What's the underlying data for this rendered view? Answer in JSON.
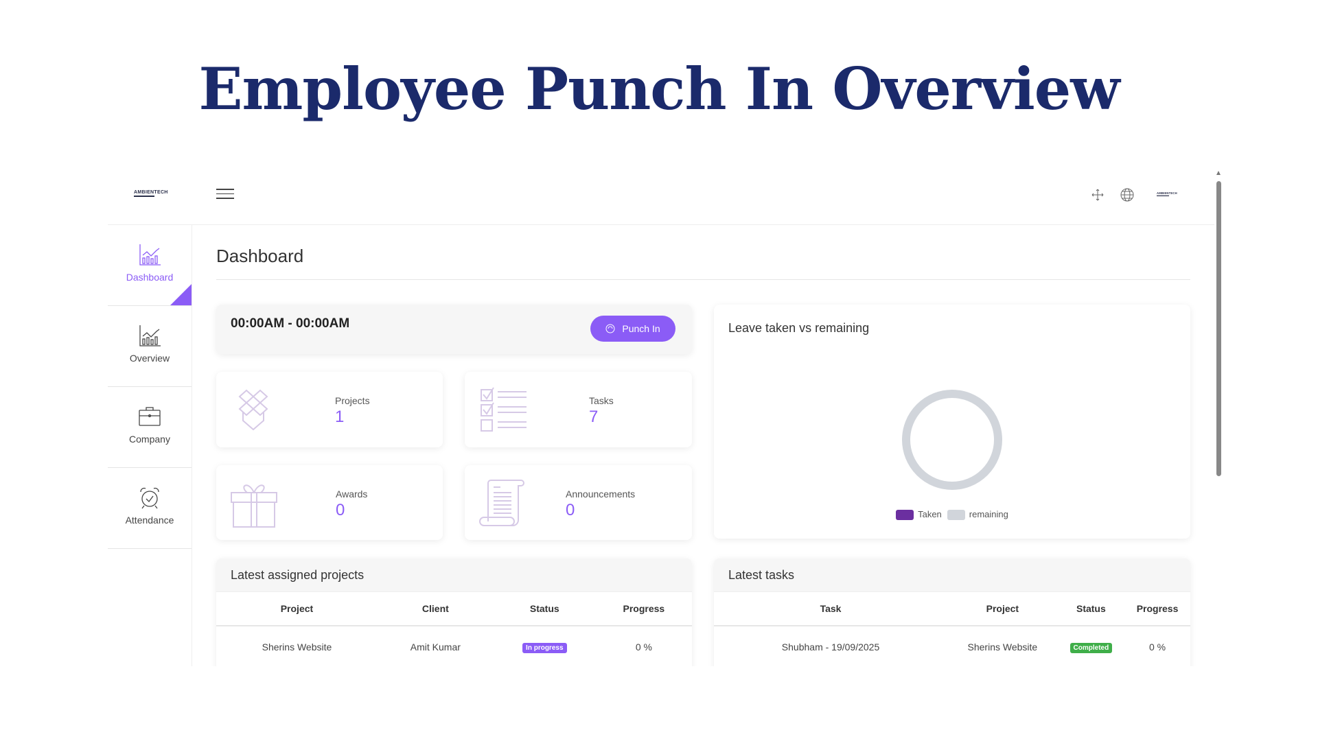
{
  "page_title": "Employee Punch In Overview",
  "header": {
    "logo_text": "AMBIENTECH",
    "icons": [
      "hamburger-icon",
      "fullscreen-move-icon",
      "globe-icon",
      "company-logo"
    ]
  },
  "sidebar": {
    "items": [
      {
        "label": "Dashboard",
        "icon": "bar-chart-icon",
        "active": true
      },
      {
        "label": "Overview",
        "icon": "bar-chart-icon",
        "active": false
      },
      {
        "label": "Company",
        "icon": "briefcase-icon",
        "active": false
      },
      {
        "label": "Attendance",
        "icon": "alarm-clock-icon",
        "active": false
      }
    ]
  },
  "main": {
    "title": "Dashboard",
    "punch": {
      "time_range": "00:00AM - 00:00AM",
      "button_label": "Punch In"
    },
    "stats": [
      {
        "label": "Projects",
        "value": "1",
        "icon": "box-icon"
      },
      {
        "label": "Tasks",
        "value": "7",
        "icon": "checklist-icon"
      },
      {
        "label": "Awards",
        "value": "0",
        "icon": "gift-icon"
      },
      {
        "label": "Announcements",
        "value": "0",
        "icon": "scroll-icon"
      }
    ],
    "leave_chart": {
      "title": "Leave taken vs remaining"
    },
    "projects_table": {
      "title": "Latest assigned projects",
      "columns": [
        "Project",
        "Client",
        "Status",
        "Progress"
      ],
      "rows": [
        {
          "project": "Sherins Website",
          "client": "Amit Kumar",
          "status": "In progress",
          "progress": "0 %"
        }
      ]
    },
    "tasks_table": {
      "title": "Latest tasks",
      "columns": [
        "Task",
        "Project",
        "Status",
        "Progress"
      ],
      "rows": [
        {
          "task": "Shubham - 19/09/2025",
          "project": "Sherins Website",
          "status": "Completed",
          "progress": "0 %"
        }
      ]
    }
  },
  "colors": {
    "accent": "#8b5cf6",
    "title": "#1b2a6b",
    "taken": "#6b2fa0",
    "remaining": "#d1d5db",
    "completed": "#3fae49"
  },
  "chart_data": {
    "type": "pie",
    "title": "Leave taken vs remaining",
    "categories": [
      "Taken",
      "remaining"
    ],
    "values": [
      0,
      1
    ],
    "legend": "bottom"
  }
}
